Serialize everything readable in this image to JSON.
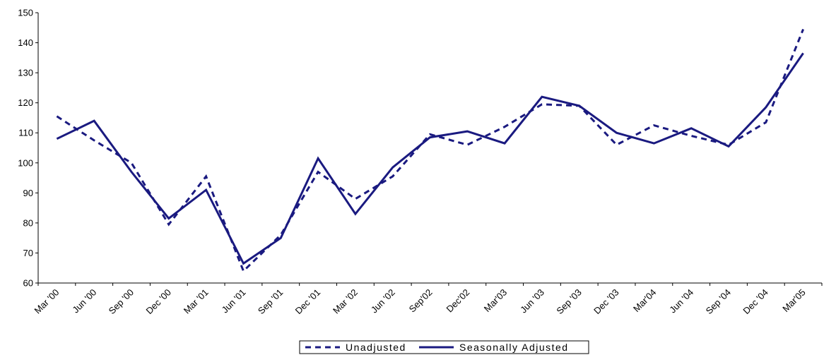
{
  "chart_data": {
    "type": "line",
    "title": "",
    "xlabel": "",
    "ylabel": "",
    "ylim": [
      60,
      150
    ],
    "yticks": [
      60,
      70,
      80,
      90,
      100,
      110,
      120,
      130,
      140,
      150
    ],
    "grid": false,
    "legend_position": "bottom-center",
    "categories": [
      "Mar '00",
      "Jun '00",
      "Sep '00",
      "Dec '00",
      "Mar '01",
      "Jun '01",
      "Sep '01",
      "Dec '01",
      "Mar '02",
      "Jun '02",
      "Sep'02",
      "Dec'02",
      "Mar'03",
      "Jun '03",
      "Sep '03",
      "Dec '03",
      "Mar'04",
      "Jun '04",
      "Sep '04",
      "Dec '04",
      "Mar'05"
    ],
    "x": [
      "Mar '00",
      "Jun '00",
      "Sep '00",
      "Dec '00",
      "Mar '01",
      "Jun '01",
      "Sep '01",
      "Dec '01",
      "Mar '02",
      "Jun '02",
      "Sep '02",
      "Dec '02",
      "Mar '03",
      "Jun '03",
      "Sep '03",
      "Dec '03",
      "Mar '04",
      "Jun '04",
      "Sep '04",
      "Dec '04",
      "Mar '05"
    ],
    "series": [
      {
        "name": "Unadjusted",
        "style": "dashed",
        "color": "#1a1a80",
        "values": [
          115.5,
          107.5,
          100.0,
          79.5,
          95.5,
          64.0,
          76.0,
          97.0,
          88.0,
          95.5,
          109.5,
          106.0,
          112.0,
          119.5,
          119.0,
          106.0,
          112.5,
          109.0,
          106.0,
          113.5,
          144.5
        ]
      },
      {
        "name": "Seasonally Adjusted",
        "style": "solid",
        "color": "#1a1a80",
        "values": [
          108.0,
          114.0,
          97.0,
          81.5,
          91.0,
          66.5,
          75.0,
          101.5,
          83.0,
          98.5,
          108.5,
          110.5,
          106.5,
          122.0,
          119.0,
          110.0,
          106.5,
          111.5,
          105.5,
          118.5,
          136.5
        ]
      }
    ]
  }
}
